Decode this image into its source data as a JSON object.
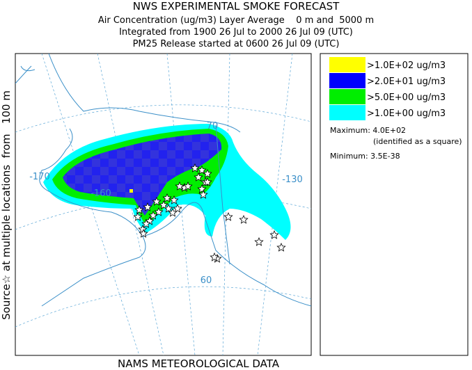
{
  "header": {
    "title": "NWS EXPERIMENTAL SMOKE FORECAST",
    "lines": [
      "Air Concentration (ug/m3) Layer Average    0 m and  5000 m",
      "Integrated from 1900 26 Jul to 2000 26 Jul 09 (UTC)",
      "PM25 Release started at 0600 26 Jul 09 (UTC)"
    ]
  },
  "source_label": "Source☆ at multiple locations  from   100 m",
  "footer": "NAMS METEOROLOGICAL DATA",
  "map": {
    "labels": [
      "70",
      "-170",
      "-160",
      "-130",
      "60"
    ]
  },
  "legend": {
    "items": [
      {
        "label": ">1.0E+02 ug/m3",
        "color": "#ffff00"
      },
      {
        "label": ">2.0E+01 ug/m3",
        "color": "#0000ff"
      },
      {
        "label": ">5.0E+00 ug/m3",
        "color": "#00ee00"
      },
      {
        "label": ">1.0E+00 ug/m3",
        "color": "#00ffff"
      }
    ],
    "maximum": "Maximum: 4.0E+02",
    "maximum_note": "(identified as a square)",
    "minimum": "Minimum: 3.5E-38"
  }
}
